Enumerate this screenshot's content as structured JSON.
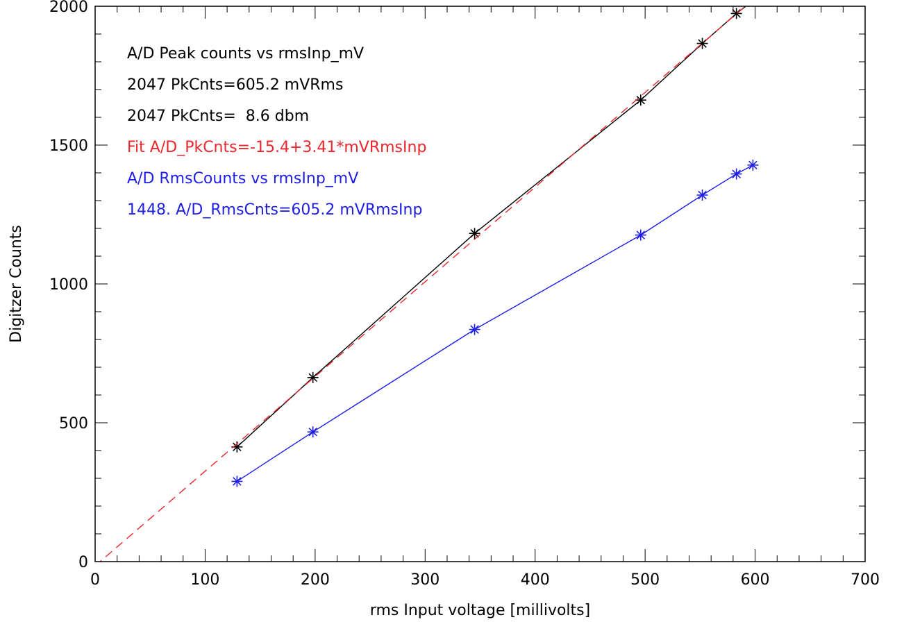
{
  "chart_data": {
    "type": "line",
    "xlabel": "rms Input voltage [millivolts]",
    "ylabel": "Digitzer Counts",
    "xlim": [
      0,
      700
    ],
    "ylim": [
      0,
      2000
    ],
    "x_major_ticks": [
      0,
      100,
      200,
      300,
      400,
      500,
      600,
      700
    ],
    "x_minor_step": 20,
    "y_major_ticks": [
      0,
      500,
      1000,
      1500,
      2000
    ],
    "y_minor_step": 100,
    "grid": false,
    "legend": "none",
    "annotations": [
      {
        "text": "A/D Peak counts vs rmsInp_mV",
        "color": "#000000"
      },
      {
        "text": "2047 PkCnts=605.2 mVRms",
        "color": "#000000"
      },
      {
        "text": "2047 PkCnts=  8.6 dbm",
        "color": "#000000"
      },
      {
        "text": "Fit A/D_PkCnts=-15.4+3.41*mVRmsInp",
        "color": "#e8262b"
      },
      {
        "text": "A/D RmsCounts vs rmsInp_mV",
        "color": "#1f1fe6"
      },
      {
        "text": "1448. A/D_RmsCnts=605.2 mVRmsInp",
        "color": "#1f1fe6"
      }
    ],
    "series": [
      {
        "color": "#000000",
        "style": "solid+asterisk",
        "x": [
          129,
          198,
          345,
          496,
          552,
          583,
          598
        ],
        "y": [
          413,
          663,
          1182,
          1662,
          1866,
          1974,
          2020
        ]
      },
      {
        "color": "#1f1fe6",
        "style": "solid+asterisk",
        "x": [
          129,
          198,
          345,
          496,
          552,
          583,
          598
        ],
        "y": [
          289,
          467,
          836,
          1176,
          1320,
          1396,
          1428
        ]
      },
      {
        "color": "#e8262b",
        "style": "dashed",
        "x": [
          0,
          605
        ],
        "y": [
          -15.4,
          2047.65
        ]
      }
    ]
  }
}
